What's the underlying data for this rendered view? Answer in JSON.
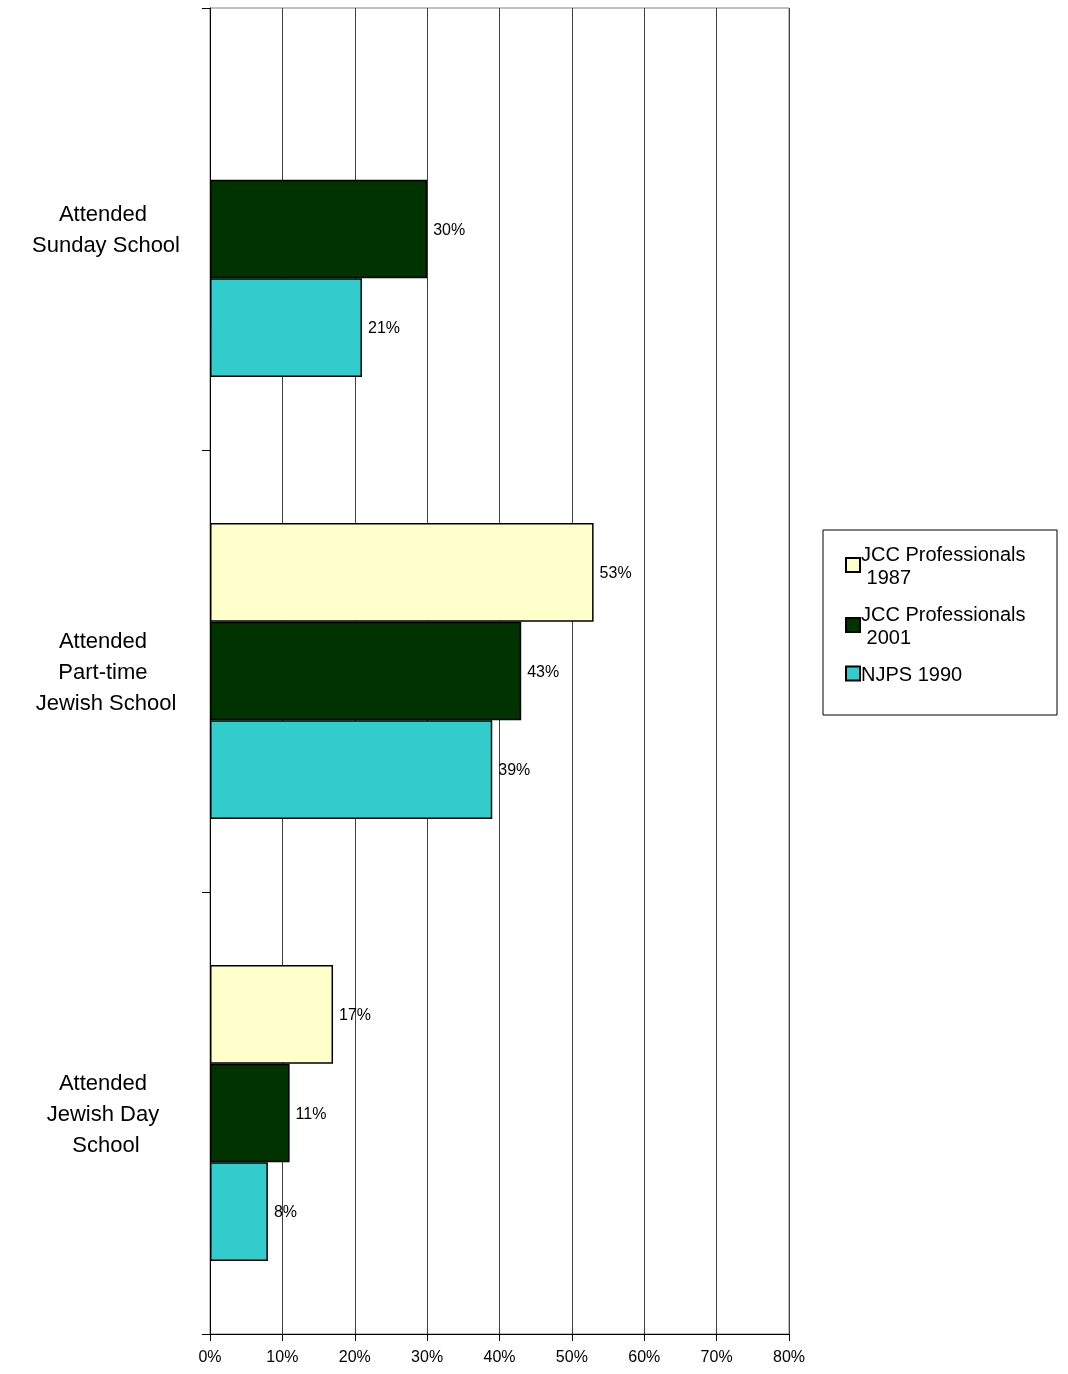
{
  "chart_data": {
    "type": "bar",
    "orientation": "horizontal",
    "categories": [
      "Attended Sunday School",
      "Attended Part-time Jewish School",
      "Attended Jewish Day School"
    ],
    "series": [
      {
        "name": "JCC Professionals 1987",
        "color": "#ffffcc",
        "values": [
          null,
          53,
          17
        ],
        "value_labels": [
          null,
          "53%",
          "17%"
        ]
      },
      {
        "name": "JCC Professionals 2001",
        "color": "#003300",
        "values": [
          30,
          43,
          11
        ],
        "value_labels": [
          "30%",
          "43%",
          "11%"
        ]
      },
      {
        "name": "NJPS 1990",
        "color": "#33cccc",
        "values": [
          21,
          39,
          8
        ],
        "value_labels": [
          "21%",
          "39%",
          "8%"
        ]
      }
    ],
    "xlim": [
      0,
      80
    ],
    "xticks": [
      {
        "value": 0,
        "label": "0%"
      },
      {
        "value": 10,
        "label": "10%"
      },
      {
        "value": 20,
        "label": "20%"
      },
      {
        "value": 30,
        "label": "30%"
      },
      {
        "value": 40,
        "label": "40%"
      },
      {
        "value": 50,
        "label": "50%"
      },
      {
        "value": 60,
        "label": "60%"
      },
      {
        "value": 70,
        "label": "70%"
      },
      {
        "value": 80,
        "label": "80%"
      }
    ],
    "grid": "x",
    "legend": "right"
  }
}
